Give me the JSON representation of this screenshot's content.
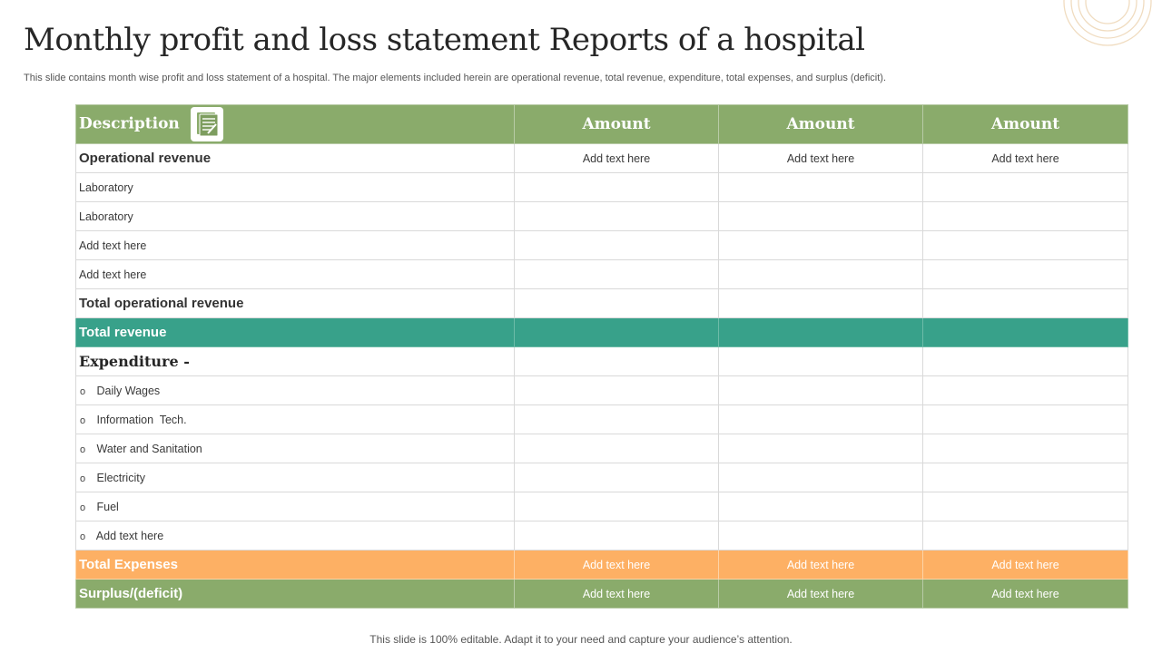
{
  "title": "Monthly profit and loss statement Reports of a hospital",
  "subtitle": "This slide contains month wise profit and loss statement of a hospital. The major elements included herein are operational revenue, total revenue, expenditure, total expenses, and surplus (deficit).",
  "table": {
    "header": {
      "description": "Description",
      "icon": "document-icon",
      "amounts": [
        "Amount",
        "Amount",
        "Amount"
      ]
    },
    "rows": [
      {
        "label": "Operational revenue",
        "values": [
          "Add text here",
          "Add text here",
          "Add text here"
        ]
      },
      {
        "label": "Laboratory"
      },
      {
        "label": "Laboratory"
      },
      {
        "label": "Add text here"
      },
      {
        "label": "Add text here"
      },
      {
        "label": "Total operational revenue"
      },
      {
        "label": "Total revenue"
      },
      {
        "label": "Expenditure -"
      },
      {
        "bullet": "o",
        "label": "Daily Wages"
      },
      {
        "bullet": "o",
        "label": "Information  Tech."
      },
      {
        "bullet": "o",
        "label": "Water and Sanitation"
      },
      {
        "bullet": "o",
        "label": "Electricity"
      },
      {
        "bullet": "o",
        "label": "Fuel"
      },
      {
        "bullet": "o",
        "label": "Add text here"
      },
      {
        "label": "Total Expenses",
        "values": [
          "Add text here",
          "Add text here",
          "Add text here"
        ]
      },
      {
        "label": "Surplus/(deficit)",
        "values": [
          "Add text here",
          "Add text here",
          "Add text here"
        ]
      }
    ]
  },
  "footer": "This slide is 100% editable. Adapt it to your need and capture your audience’s attention.",
  "colors": {
    "header_green": "#8aab6b",
    "total_revenue_teal": "#38a18a",
    "total_expenses_orange": "#fdb064",
    "surplus_green": "#8aab6b",
    "deco_ring": "#f0dcc0"
  }
}
